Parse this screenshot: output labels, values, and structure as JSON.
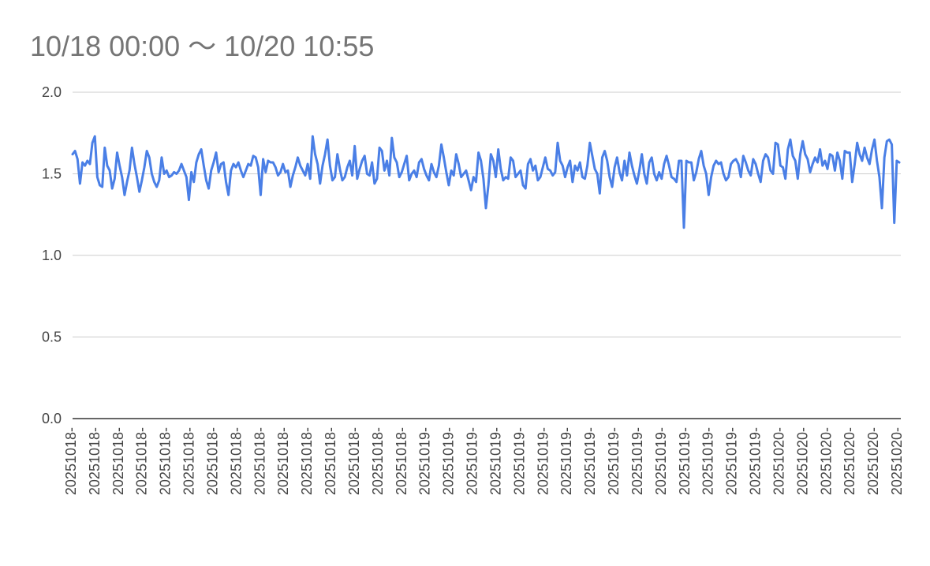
{
  "chart_data": {
    "type": "line",
    "title": "10/18 00:00 〜 10/20 10:55",
    "ylim": [
      0,
      2.0
    ],
    "yticks": [
      "0.0",
      "0.5",
      "1.0",
      "1.5",
      "2.0"
    ],
    "xtick_labels": [
      "20251018-",
      "20251018-",
      "20251018-",
      "20251018-",
      "20251018-",
      "20251018-",
      "20251018-",
      "20251018-",
      "20251018-",
      "20251018-",
      "20251018-",
      "20251018-",
      "20251018-",
      "20251018-",
      "20251018-",
      "20251019-",
      "20251019-",
      "20251019-",
      "20251019-",
      "20251019-",
      "20251019-",
      "20251019-",
      "20251019-",
      "20251019-",
      "20251019-",
      "20251019-",
      "20251019-",
      "20251019-",
      "20251019-",
      "20251019-",
      "20251020-",
      "20251020-",
      "20251020-",
      "20251020-",
      "20251020-",
      "20251020-"
    ],
    "grid": true,
    "legend": "none",
    "series_color": "#4a7fe6",
    "series": [
      {
        "values": [
          1.62,
          1.64,
          1.59,
          1.44,
          1.57,
          1.55,
          1.58,
          1.56,
          1.69,
          1.73,
          1.48,
          1.43,
          1.42,
          1.66,
          1.55,
          1.52,
          1.41,
          1.47,
          1.63,
          1.55,
          1.48,
          1.37,
          1.45,
          1.52,
          1.66,
          1.56,
          1.48,
          1.39,
          1.46,
          1.54,
          1.64,
          1.6,
          1.5,
          1.45,
          1.42,
          1.46,
          1.6,
          1.5,
          1.52,
          1.48,
          1.49,
          1.51,
          1.5,
          1.52,
          1.56,
          1.52,
          1.48,
          1.34,
          1.51,
          1.45,
          1.57,
          1.62,
          1.65,
          1.55,
          1.46,
          1.41,
          1.52,
          1.57,
          1.63,
          1.51,
          1.56,
          1.57,
          1.45,
          1.37,
          1.52,
          1.56,
          1.54,
          1.57,
          1.52,
          1.48,
          1.52,
          1.56,
          1.55,
          1.61,
          1.6,
          1.54,
          1.37,
          1.59,
          1.51,
          1.58,
          1.57,
          1.57,
          1.54,
          1.49,
          1.51,
          1.56,
          1.51,
          1.52,
          1.42,
          1.49,
          1.54,
          1.6,
          1.55,
          1.52,
          1.49,
          1.56,
          1.47,
          1.73,
          1.62,
          1.56,
          1.44,
          1.55,
          1.62,
          1.71,
          1.55,
          1.46,
          1.48,
          1.62,
          1.53,
          1.46,
          1.48,
          1.54,
          1.58,
          1.49,
          1.67,
          1.47,
          1.53,
          1.58,
          1.61,
          1.5,
          1.49,
          1.57,
          1.44,
          1.47,
          1.66,
          1.64,
          1.52,
          1.58,
          1.49,
          1.72,
          1.6,
          1.57,
          1.48,
          1.51,
          1.56,
          1.61,
          1.46,
          1.5,
          1.52,
          1.48,
          1.57,
          1.59,
          1.53,
          1.49,
          1.46,
          1.56,
          1.51,
          1.48,
          1.55,
          1.68,
          1.6,
          1.51,
          1.43,
          1.52,
          1.49,
          1.62,
          1.56,
          1.48,
          1.5,
          1.52,
          1.46,
          1.4,
          1.48,
          1.45,
          1.63,
          1.58,
          1.47,
          1.29,
          1.43,
          1.62,
          1.58,
          1.48,
          1.65,
          1.53,
          1.46,
          1.48,
          1.47,
          1.6,
          1.58,
          1.48,
          1.5,
          1.52,
          1.43,
          1.41,
          1.56,
          1.59,
          1.52,
          1.55,
          1.46,
          1.48,
          1.54,
          1.6,
          1.53,
          1.52,
          1.49,
          1.51,
          1.69,
          1.58,
          1.55,
          1.48,
          1.54,
          1.58,
          1.45,
          1.55,
          1.52,
          1.57,
          1.48,
          1.47,
          1.55,
          1.69,
          1.61,
          1.53,
          1.5,
          1.38,
          1.6,
          1.64,
          1.58,
          1.48,
          1.42,
          1.54,
          1.6,
          1.51,
          1.46,
          1.58,
          1.49,
          1.63,
          1.55,
          1.49,
          1.44,
          1.52,
          1.62,
          1.5,
          1.44,
          1.57,
          1.6,
          1.5,
          1.46,
          1.51,
          1.47,
          1.56,
          1.61,
          1.55,
          1.48,
          1.47,
          1.45,
          1.58,
          1.58,
          1.17,
          1.58,
          1.57,
          1.57,
          1.46,
          1.51,
          1.59,
          1.64,
          1.55,
          1.5,
          1.37,
          1.48,
          1.55,
          1.58,
          1.56,
          1.57,
          1.5,
          1.46,
          1.48,
          1.56,
          1.58,
          1.59,
          1.56,
          1.48,
          1.61,
          1.57,
          1.52,
          1.49,
          1.59,
          1.56,
          1.5,
          1.45,
          1.58,
          1.62,
          1.6,
          1.52,
          1.5,
          1.69,
          1.68,
          1.55,
          1.54,
          1.47,
          1.65,
          1.71,
          1.61,
          1.58,
          1.47,
          1.62,
          1.7,
          1.62,
          1.59,
          1.51,
          1.56,
          1.6,
          1.57,
          1.65,
          1.55,
          1.58,
          1.53,
          1.62,
          1.61,
          1.52,
          1.63,
          1.58,
          1.47,
          1.64,
          1.63,
          1.63,
          1.45,
          1.56,
          1.69,
          1.62,
          1.58,
          1.66,
          1.6,
          1.56,
          1.65,
          1.71,
          1.58,
          1.48,
          1.29,
          1.6,
          1.7,
          1.71,
          1.68,
          1.2,
          1.58,
          1.57
        ]
      }
    ]
  }
}
